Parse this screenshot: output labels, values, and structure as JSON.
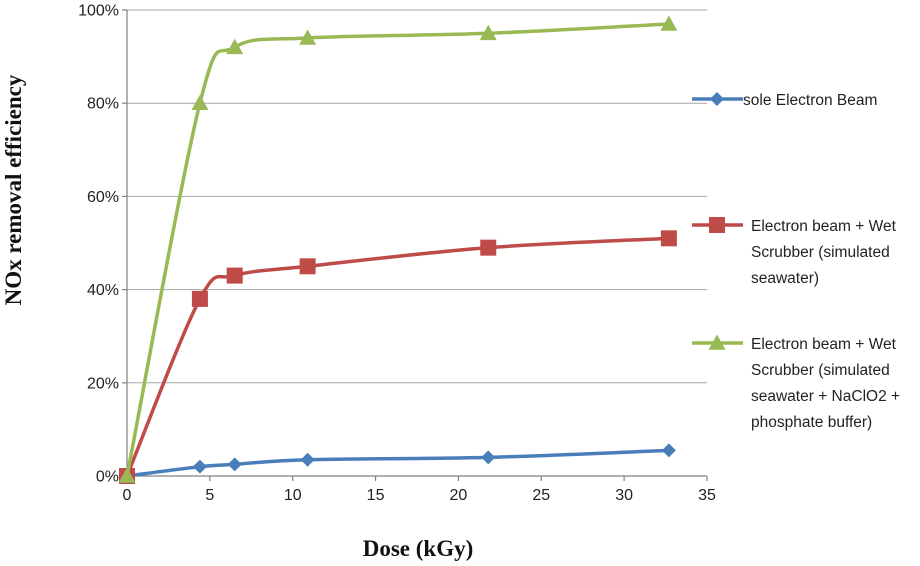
{
  "chart_data": {
    "type": "line",
    "title": "",
    "xlabel": "Dose (kGy)",
    "ylabel": "NOx removal efficiency",
    "xlim": [
      0,
      35
    ],
    "ylim": [
      0,
      100
    ],
    "x_ticks": [
      0,
      5,
      10,
      15,
      20,
      25,
      30,
      35
    ],
    "x_tick_labels": [
      "0",
      "5",
      "10",
      "15",
      "20",
      "25",
      "30",
      "35"
    ],
    "y_ticks": [
      0,
      20,
      40,
      60,
      80,
      100
    ],
    "y_tick_labels": [
      "0%",
      "20%",
      "40%",
      "60%",
      "80%",
      "100%"
    ],
    "grid": "horizontal",
    "legend_position": "right",
    "series": [
      {
        "name": "sole Electron Beam",
        "legend_lines": [
          "sole Electron Beam"
        ],
        "marker": "diamond",
        "color": "#4a7ebb",
        "x": [
          0,
          4.4,
          6.5,
          10.9,
          21.8,
          32.7
        ],
        "y": [
          0,
          2,
          2.5,
          3.5,
          4,
          5.5
        ]
      },
      {
        "name": "Electron beam + Wet Scrubber (simulated seawater)",
        "legend_lines": [
          "Electron beam + Wet",
          "Scrubber (simulated",
          "seawater)"
        ],
        "marker": "square",
        "color": "#be4b48",
        "x": [
          0,
          4.4,
          6.5,
          10.9,
          21.8,
          32.7
        ],
        "y": [
          0,
          38,
          43,
          45,
          49,
          51
        ]
      },
      {
        "name": "Electron beam + Wet Scrubber (simulated seawater + NaClO2 + phosphate buffer)",
        "legend_lines": [
          "Electron beam + Wet",
          "Scrubber (simulated",
          "seawater + NaClO2 +",
          "phosphate buffer)"
        ],
        "marker": "triangle",
        "color": "#98b954",
        "x": [
          0,
          4.4,
          6.5,
          10.9,
          21.8,
          32.7
        ],
        "y": [
          0,
          80,
          92,
          94,
          95,
          97
        ]
      }
    ]
  }
}
